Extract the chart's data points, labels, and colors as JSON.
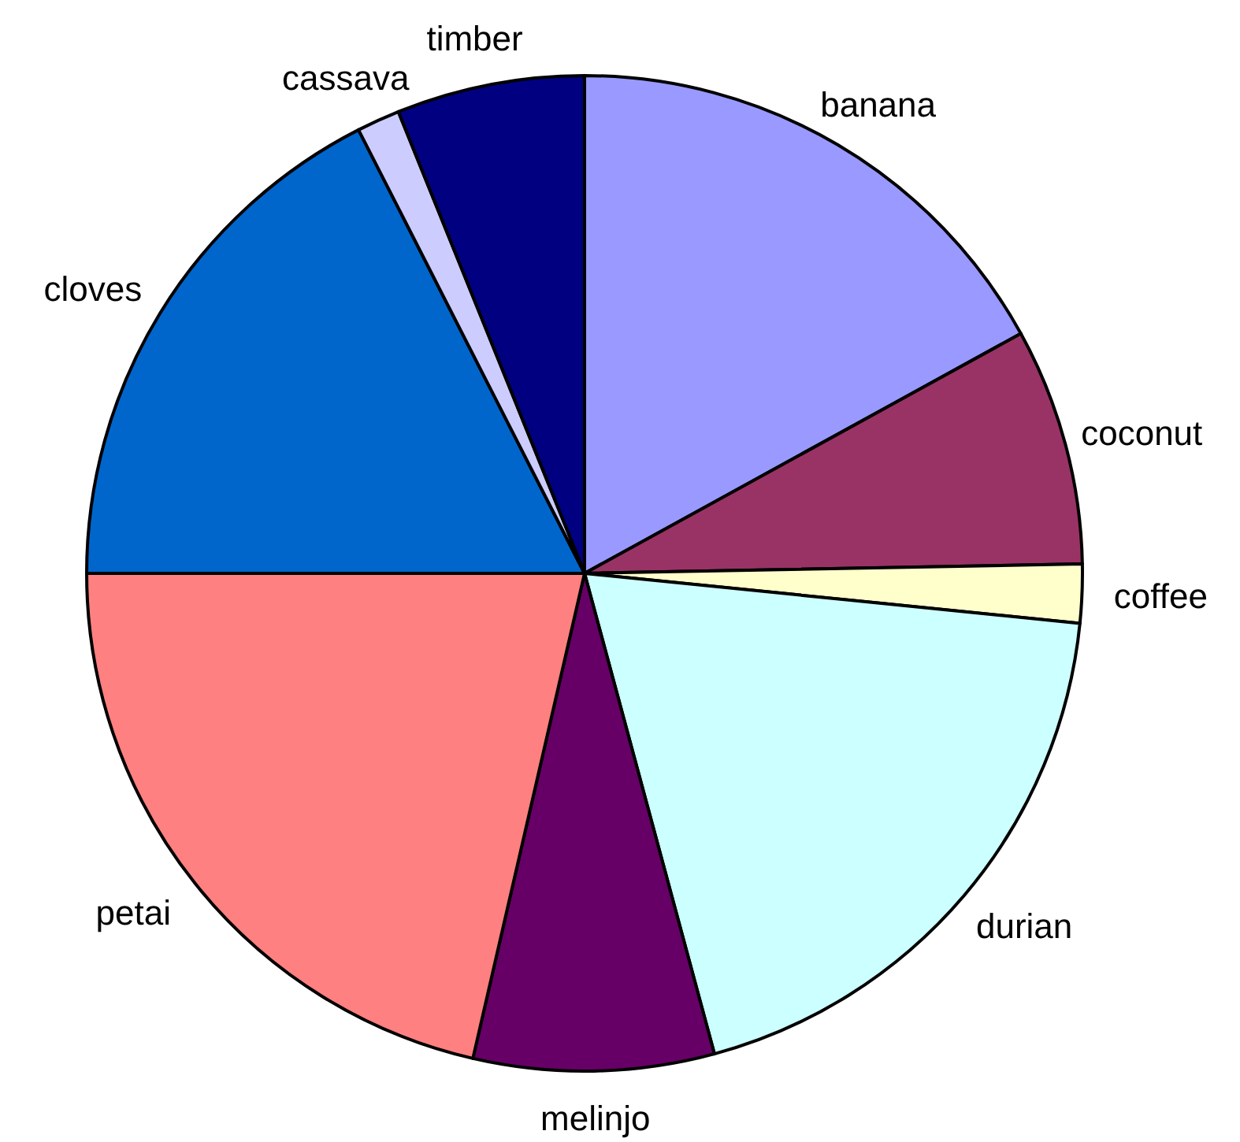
{
  "chart_data": {
    "type": "pie",
    "categories": [
      "banana",
      "coconut",
      "coffee",
      "durian",
      "melinjo",
      "petai",
      "cloves",
      "cassava",
      "timber"
    ],
    "values": [
      17.0,
      7.7,
      1.9,
      19.2,
      7.8,
      21.4,
      17.5,
      1.4,
      6.1
    ],
    "colors": [
      "#9999ff",
      "#993366",
      "#ffffcc",
      "#ccffff",
      "#660066",
      "#ff8080",
      "#0066cc",
      "#ccccff",
      "#000080"
    ]
  }
}
